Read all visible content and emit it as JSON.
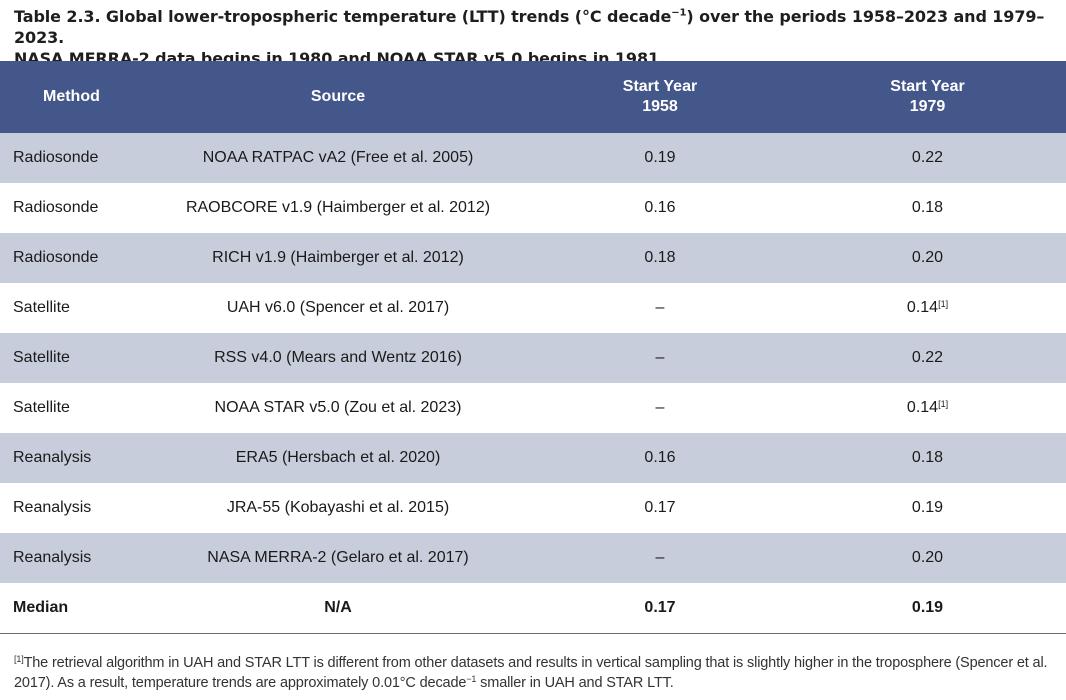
{
  "caption": {
    "line1_a": "Table 2.3. Global lower-tropospheric temperature (LTT) trends (°C decade",
    "line1_sup": "−1",
    "line1_b": ") over the periods 1958–2023 and 1979–2023.",
    "line2": "NASA MERRA-2 data begins in 1980 and NOAA STAR v5.0 begins in 1981."
  },
  "table": {
    "headers": {
      "method": "Method",
      "source": "Source",
      "start1958_line1": "Start Year",
      "start1958_line2": "1958",
      "start1979_line1": "Start Year",
      "start1979_line2": "1979"
    },
    "rows": [
      {
        "method": "Radiosonde",
        "source": "NOAA RATPAC vA2 (Free et al. 2005)",
        "v1958": "0.19",
        "v1979": "0.22",
        "fn1979": ""
      },
      {
        "method": "Radiosonde",
        "source": "RAOBCORE v1.9 (Haimberger et al. 2012)",
        "v1958": "0.16",
        "v1979": "0.18",
        "fn1979": ""
      },
      {
        "method": "Radiosonde",
        "source": "RICH v1.9 (Haimberger et al. 2012)",
        "v1958": "0.18",
        "v1979": "0.20",
        "fn1979": ""
      },
      {
        "method": "Satellite",
        "source": "UAH v6.0 (Spencer et al. 2017)",
        "v1958": "–",
        "v1979": "0.14",
        "fn1979": "[1]"
      },
      {
        "method": "Satellite",
        "source": "RSS v4.0 (Mears and Wentz 2016)",
        "v1958": "–",
        "v1979": "0.22",
        "fn1979": ""
      },
      {
        "method": "Satellite",
        "source": "NOAA STAR v5.0 (Zou et al. 2023)",
        "v1958": "–",
        "v1979": "0.14",
        "fn1979": "[1]"
      },
      {
        "method": "Reanalysis",
        "source": "ERA5 (Hersbach et al. 2020)",
        "v1958": "0.16",
        "v1979": "0.18",
        "fn1979": ""
      },
      {
        "method": "Reanalysis",
        "source": "JRA-55 (Kobayashi et al. 2015)",
        "v1958": "0.17",
        "v1979": "0.19",
        "fn1979": ""
      },
      {
        "method": "Reanalysis",
        "source": "NASA MERRA-2 (Gelaro et al. 2017)",
        "v1958": "–",
        "v1979": "0.20",
        "fn1979": ""
      }
    ],
    "median": {
      "method": "Median",
      "source": "N/A",
      "v1958": "0.17",
      "v1979": "0.19"
    }
  },
  "footnote": {
    "marker": "[1]",
    "text_a": "The retrieval algorithm in UAH and STAR LTT is different from other datasets and results in vertical sampling that is slightly higher in the troposphere (Spencer et al. 2017). As a result, temperature trends are approximately 0.01°C decade",
    "sup": "−1",
    "text_b": " smaller in UAH and STAR LTT."
  },
  "colors": {
    "header_bg": "#44578a",
    "shaded_row": "#c8cddb",
    "plain_row": "#ffffff"
  }
}
